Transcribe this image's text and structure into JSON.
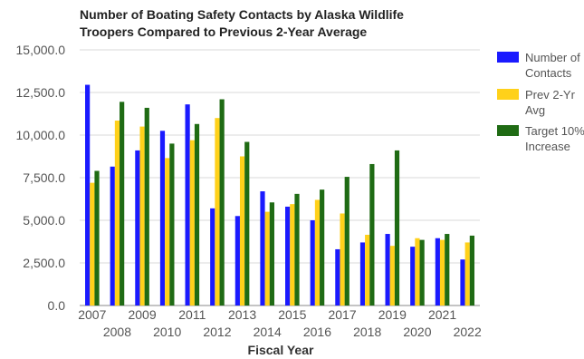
{
  "chart_data": {
    "type": "bar",
    "title_lines": [
      "Number of Boating Safety Contacts by Alaska Wildlife",
      "Troopers Compared to Previous 2-Year Average"
    ],
    "xlabel": "Fiscal Year",
    "ylabel": "",
    "ylim": [
      0,
      15000
    ],
    "yticks": [
      "0.0",
      "2,500.0",
      "5,000.0",
      "7,500.0",
      "10,000.0",
      "12,500.0",
      "15,000.0"
    ],
    "grid": true,
    "legend_position": "right",
    "categories": [
      "2007",
      "2008",
      "2009",
      "2010",
      "2011",
      "2012",
      "2013",
      "2014",
      "2015",
      "2016",
      "2017",
      "2018",
      "2019",
      "2020",
      "2021",
      "2022"
    ],
    "series": [
      {
        "name": "Number of Contacts",
        "legend_lines": [
          "Number of",
          "Contacts"
        ],
        "color": "#1a1aff",
        "values": [
          12950,
          8150,
          9100,
          10250,
          11800,
          5700,
          5250,
          6700,
          5800,
          5000,
          3300,
          3700,
          4200,
          3450,
          3950,
          2700
        ]
      },
      {
        "name": "Prev 2-Yr Avg",
        "legend_lines": [
          "Prev 2-Yr",
          "Avg"
        ],
        "color": "#ffd11a",
        "values": [
          7200,
          10850,
          10500,
          8650,
          9700,
          11000,
          8750,
          5500,
          5950,
          6200,
          5400,
          4150,
          3500,
          3950,
          3850,
          3700
        ]
      },
      {
        "name": "Target 10% Increase",
        "legend_lines": [
          "Target 10%",
          "Increase"
        ],
        "color": "#1f6b14",
        "values": [
          7900,
          11950,
          11600,
          9500,
          10650,
          12100,
          9600,
          6050,
          6550,
          6800,
          7550,
          8300,
          9100,
          3850,
          4200,
          4100
        ]
      }
    ]
  }
}
